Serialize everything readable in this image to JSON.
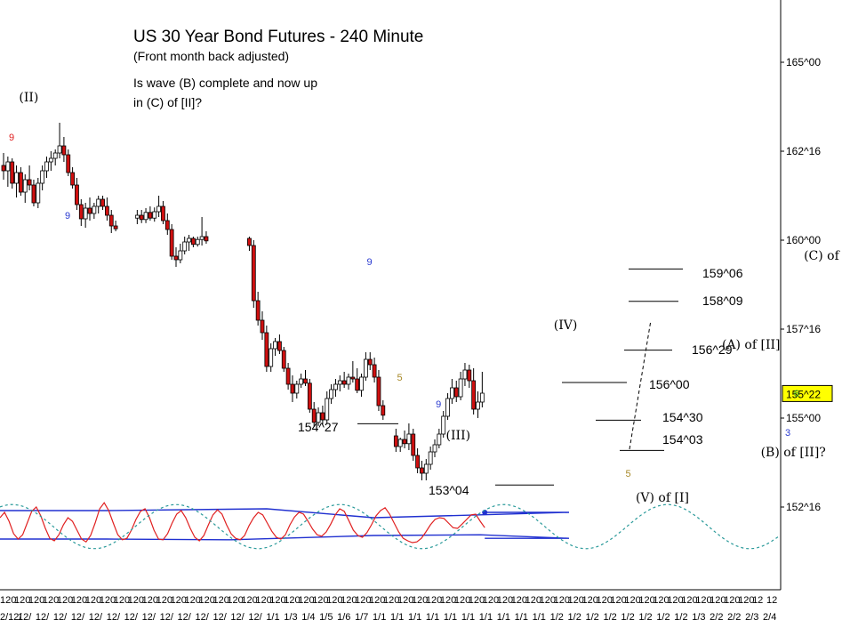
{
  "chart_data": {
    "type": "candlestick",
    "title": "US 30 Year Bond Futures - 240 Minute",
    "subtitle": "(Front month back adjusted)",
    "question_line1": "Is wave (B) complete and now up",
    "question_line2": "in (C) of [II]?",
    "y_axis": {
      "range": [
        151.25,
        166.0
      ],
      "ticks": [
        "165^00",
        "162^16",
        "160^00",
        "157^16",
        "155^00",
        "152^16"
      ],
      "tick_values": [
        165.0,
        162.5,
        160.0,
        157.5,
        155.0,
        152.5
      ],
      "current_price_label": "155^22",
      "current_price": 155.69
    },
    "x_axis": {
      "row1": [
        "120",
        "120",
        "120",
        "120",
        "120",
        "120",
        "120",
        "120",
        "120",
        "120",
        "120",
        "120",
        "120",
        "120",
        "120",
        "120",
        "120",
        "120",
        "120",
        "120",
        "120",
        "120",
        "120",
        "120",
        "120",
        "120",
        "120",
        "120",
        "120",
        "120",
        "120",
        "120",
        "120",
        "120",
        "120",
        "120",
        "120",
        "120",
        "120",
        "120",
        "120",
        "120",
        "120",
        "120",
        "120",
        "120",
        "120",
        "120",
        "120",
        "120",
        "120",
        "120",
        "120",
        "12",
        "12"
      ],
      "row2": [
        "2/12/",
        "12/",
        "12/",
        "12/",
        "12/",
        "12/",
        "12/",
        "12/",
        "12/",
        "12/",
        "12/",
        "12/",
        "12/",
        "12/",
        "12/",
        "1/1",
        "1/3",
        "1/4",
        "1/5",
        "1/6",
        "1/7",
        "1/1",
        "1/1",
        "1/1",
        "1/1",
        "1/1",
        "1/1",
        "1/1",
        "1/1",
        "1/1",
        "1/1",
        "1/2",
        "1/2",
        "1/2",
        "1/2",
        "1/2",
        "1/2",
        "1/2",
        "1/2",
        "1/3",
        "2/2",
        "2/2",
        "2/3",
        "2/4"
      ]
    },
    "wave_labels": [
      {
        "text": "(II)",
        "x": 4,
        "y": 163.9
      },
      {
        "text": "(IV)",
        "x": 128,
        "y": 157.5
      },
      {
        "text": "(III)",
        "x": 103,
        "y": 154.4
      },
      {
        "text": "(A) of [II]",
        "x": 167,
        "y": 156.95
      },
      {
        "text": "(V) of [I]",
        "x": 147,
        "y": 152.65
      },
      {
        "text": "(B) of [II]?",
        "x": 176,
        "y": 153.92
      },
      {
        "text": "(C) of [II]?",
        "x": 186,
        "y": 159.45
      }
    ],
    "price_labels": [
      {
        "text": "154^27",
        "value": 154.84
      },
      {
        "text": "153^04",
        "value": 153.12
      },
      {
        "text": "159^06",
        "value": 159.19
      },
      {
        "text": "158^09",
        "value": 158.28
      },
      {
        "text": "156^29",
        "value": 156.91
      },
      {
        "text": "156^00",
        "value": 156.0
      },
      {
        "text": "154^30",
        "value": 154.94
      },
      {
        "text": "154^03",
        "value": 154.09
      }
    ],
    "count_labels": [
      {
        "text": "9",
        "color": "#e02020",
        "x": 0,
        "y": 162.8
      },
      {
        "text": "9",
        "color": "#2a3ad0",
        "x": 13,
        "y": 160.6
      },
      {
        "text": "9",
        "color": "#2a3ad0",
        "x": 83,
        "y": 159.3
      },
      {
        "text": "5",
        "color": "#a88a2a",
        "x": 90,
        "y": 156.05
      },
      {
        "text": "9",
        "color": "#2a3ad0",
        "x": 99,
        "y": 155.3
      },
      {
        "text": "5",
        "color": "#a88a2a",
        "x": 143,
        "y": 153.35
      },
      {
        "text": "3",
        "color": "#2a3ad0",
        "x": 180,
        "y": 154.5
      },
      {
        "text": "6",
        "color": "#2aa02a",
        "x": 182,
        "y": 155.6
      }
    ],
    "candles": [
      [
        162.1,
        162.45,
        161.7,
        161.95
      ],
      [
        161.95,
        162.35,
        161.5,
        162.2
      ],
      [
        162.2,
        162.3,
        161.45,
        161.6
      ],
      [
        161.6,
        162.1,
        161.2,
        161.9
      ],
      [
        161.9,
        162.05,
        161.25,
        161.35
      ],
      [
        161.35,
        161.85,
        161.05,
        161.7
      ],
      [
        161.7,
        162.1,
        161.4,
        161.55
      ],
      [
        161.55,
        161.7,
        160.95,
        161.05
      ],
      [
        161.05,
        161.75,
        160.9,
        161.6
      ],
      [
        161.6,
        162.1,
        161.4,
        161.95
      ],
      [
        161.95,
        162.35,
        161.75,
        162.2
      ],
      [
        162.2,
        162.5,
        161.95,
        162.3
      ],
      [
        162.3,
        162.55,
        162.1,
        162.45
      ],
      [
        162.45,
        163.3,
        162.3,
        162.65
      ],
      [
        162.65,
        162.9,
        162.2,
        162.4
      ],
      [
        162.4,
        162.55,
        161.8,
        161.9
      ],
      [
        161.9,
        162.05,
        161.45,
        161.55
      ],
      [
        161.55,
        161.75,
        160.85,
        161.0
      ],
      [
        161.0,
        161.15,
        160.4,
        160.6
      ],
      [
        160.6,
        161.05,
        160.35,
        160.9
      ],
      [
        160.9,
        161.2,
        160.55,
        160.75
      ],
      [
        160.75,
        161.05,
        160.6,
        160.95
      ],
      [
        160.95,
        161.25,
        160.75,
        161.15
      ],
      [
        161.15,
        161.25,
        160.85,
        160.95
      ],
      [
        160.95,
        161.2,
        160.55,
        160.7
      ],
      [
        160.7,
        160.85,
        160.2,
        160.4
      ],
      [
        160.4,
        160.55,
        160.25,
        160.32
      ],
      null,
      null,
      null,
      null,
      [
        160.62,
        160.85,
        160.45,
        160.7
      ],
      [
        160.7,
        160.85,
        160.48,
        160.58
      ],
      [
        160.58,
        160.9,
        160.48,
        160.78
      ],
      [
        160.78,
        160.95,
        160.55,
        160.62
      ],
      [
        160.62,
        160.92,
        160.52,
        160.8
      ],
      [
        160.8,
        161.25,
        160.65,
        160.95
      ],
      [
        160.95,
        161.1,
        160.45,
        160.55
      ],
      [
        160.55,
        160.75,
        160.15,
        160.3
      ],
      [
        160.3,
        160.45,
        159.45,
        159.55
      ],
      [
        159.55,
        159.8,
        159.25,
        159.45
      ],
      [
        159.45,
        159.9,
        159.35,
        159.7
      ],
      [
        159.7,
        160.1,
        159.6,
        159.95
      ],
      [
        159.95,
        160.15,
        159.7,
        160.05
      ],
      [
        160.05,
        160.1,
        159.8,
        159.88
      ],
      [
        159.88,
        160.1,
        159.82,
        160.02
      ],
      [
        160.02,
        160.65,
        159.85,
        160.1
      ],
      [
        160.1,
        160.25,
        159.9,
        159.98
      ],
      null,
      null,
      null,
      null,
      null,
      null,
      null,
      null,
      null,
      [
        160.05,
        160.1,
        159.7,
        159.85
      ],
      [
        159.85,
        160.0,
        158.1,
        158.3
      ],
      [
        158.3,
        158.55,
        157.6,
        157.75
      ],
      [
        157.75,
        158.0,
        157.2,
        157.4
      ],
      [
        157.4,
        157.6,
        156.3,
        156.45
      ],
      [
        156.45,
        157.1,
        156.3,
        156.95
      ],
      [
        156.95,
        157.25,
        156.75,
        157.15
      ],
      [
        157.15,
        157.35,
        156.8,
        156.9
      ],
      [
        156.9,
        157.0,
        156.3,
        156.4
      ],
      [
        156.4,
        156.55,
        155.8,
        155.95
      ],
      [
        155.95,
        156.2,
        155.45,
        155.7
      ],
      [
        155.7,
        156.05,
        155.55,
        155.95
      ],
      [
        155.95,
        156.25,
        155.85,
        156.1
      ],
      [
        156.1,
        156.35,
        155.9,
        155.98
      ],
      [
        155.98,
        156.1,
        155.15,
        155.25
      ],
      [
        155.25,
        155.45,
        154.75,
        154.88
      ],
      [
        154.88,
        155.3,
        154.78,
        155.15
      ],
      [
        155.15,
        155.35,
        154.82,
        154.95
      ],
      [
        154.95,
        155.75,
        154.85,
        155.55
      ],
      [
        155.55,
        155.95,
        155.4,
        155.8
      ],
      [
        155.8,
        156.1,
        155.6,
        155.95
      ],
      [
        155.95,
        156.2,
        155.75,
        156.05
      ],
      [
        156.05,
        156.3,
        155.85,
        155.95
      ],
      [
        155.95,
        156.25,
        155.8,
        156.15
      ],
      [
        156.15,
        156.6,
        156.0,
        156.1
      ],
      [
        156.1,
        156.4,
        155.7,
        155.78
      ],
      [
        155.78,
        156.25,
        155.6,
        156.15
      ],
      [
        156.15,
        156.85,
        156.05,
        156.65
      ],
      [
        156.65,
        156.85,
        156.35,
        156.5
      ],
      [
        156.5,
        156.7,
        156.0,
        156.15
      ],
      [
        156.15,
        156.35,
        155.2,
        155.35
      ],
      [
        155.35,
        155.5,
        154.95,
        155.08
      ],
      null,
      null,
      [
        154.5,
        154.7,
        154.05,
        154.2
      ],
      [
        154.2,
        154.45,
        154.05,
        154.4
      ],
      [
        154.4,
        154.65,
        154.15,
        154.28
      ],
      [
        154.28,
        154.85,
        154.1,
        154.55
      ],
      [
        154.55,
        154.7,
        153.8,
        153.95
      ],
      [
        153.95,
        154.15,
        153.45,
        153.6
      ],
      [
        153.6,
        153.8,
        153.25,
        153.45
      ],
      [
        153.45,
        153.85,
        153.25,
        153.7
      ],
      [
        153.7,
        154.2,
        153.55,
        154.05
      ],
      [
        154.05,
        154.4,
        153.9,
        154.25
      ],
      [
        154.25,
        154.7,
        154.15,
        154.55
      ],
      [
        154.55,
        155.2,
        154.45,
        155.05
      ],
      [
        155.05,
        155.7,
        154.95,
        155.55
      ],
      [
        155.55,
        156.1,
        155.4,
        155.85
      ],
      [
        155.85,
        156.05,
        155.45,
        155.6
      ],
      [
        155.6,
        156.3,
        155.5,
        156.1
      ],
      [
        156.1,
        156.55,
        155.9,
        156.35
      ],
      [
        156.35,
        156.5,
        155.85,
        156.05
      ],
      [
        156.05,
        156.4,
        155.1,
        155.25
      ],
      [
        155.25,
        155.75,
        155.0,
        155.45
      ],
      [
        155.45,
        156.3,
        155.3,
        155.7
      ]
    ],
    "indicator": {
      "band_upper_start": 152.4,
      "band_upper_end": 152.35,
      "band_lower_start": 151.6,
      "band_lower_end": 151.62,
      "band_middle_start": 151.95,
      "band_middle_end": 152.1,
      "oscillator_red": [
        152.2,
        152.35,
        152.1,
        151.75,
        151.6,
        151.72,
        152.05,
        152.38,
        152.5,
        152.25,
        151.9,
        151.62,
        151.55,
        151.72,
        152.0,
        152.2,
        152.1,
        151.85,
        151.6,
        151.52,
        151.7,
        152.05,
        152.45,
        152.62,
        152.4,
        152.05,
        151.72,
        151.58,
        151.62,
        151.85,
        152.15,
        152.38,
        152.45,
        152.2,
        151.85,
        151.6,
        151.58,
        151.75,
        152.05,
        152.3,
        152.4,
        152.2,
        151.9,
        151.65,
        151.55,
        151.7,
        152.0,
        152.28,
        152.42,
        152.3,
        152.0,
        151.75,
        151.62,
        151.58,
        151.7,
        151.98,
        152.2,
        152.35,
        152.28,
        152.05,
        151.82,
        151.65,
        151.6,
        151.72,
        152.0,
        152.22,
        152.35,
        152.3,
        152.1,
        151.88,
        151.72,
        151.68,
        151.8,
        152.02,
        152.28,
        152.45,
        152.38,
        152.12,
        151.85,
        151.7,
        151.65,
        151.78,
        152.0,
        152.25,
        152.4,
        152.48,
        152.3,
        152.05,
        151.8,
        151.62,
        151.55,
        151.5,
        151.52,
        151.62,
        151.8,
        152.0,
        152.15,
        152.2,
        152.18,
        152.05,
        151.92,
        151.9,
        152.02,
        152.15,
        152.28,
        152.3,
        152.1,
        151.92
      ],
      "cycle_amplitude": 0.62,
      "cycle_center": 151.95,
      "cycle_period": 38
    },
    "grid": false,
    "legend": "none"
  }
}
